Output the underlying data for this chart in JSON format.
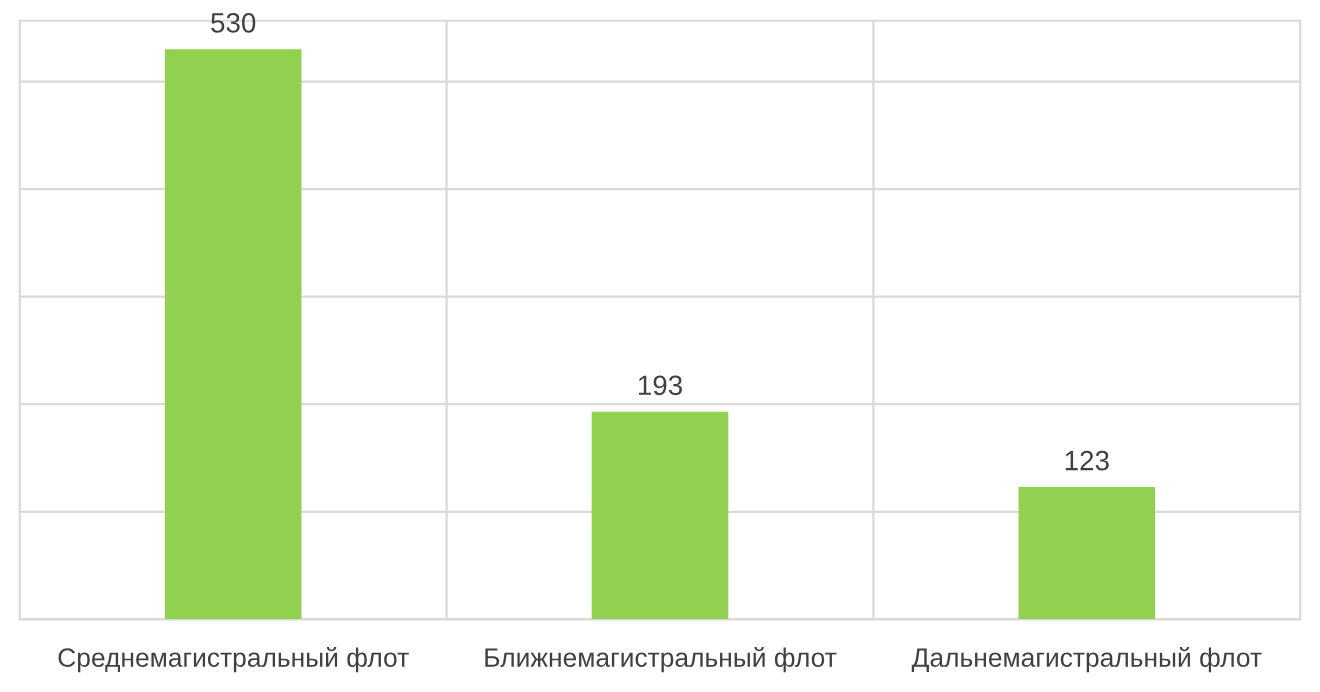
{
  "chart_data": {
    "type": "bar",
    "categories": [
      "Среднемагистральный флот",
      "Ближнемагистральный флот",
      "Дальнемагистральный флот"
    ],
    "values": [
      530,
      193,
      123
    ],
    "color": "#92d050",
    "data_labels": true,
    "grid": true,
    "tick_labels": "x"
  }
}
